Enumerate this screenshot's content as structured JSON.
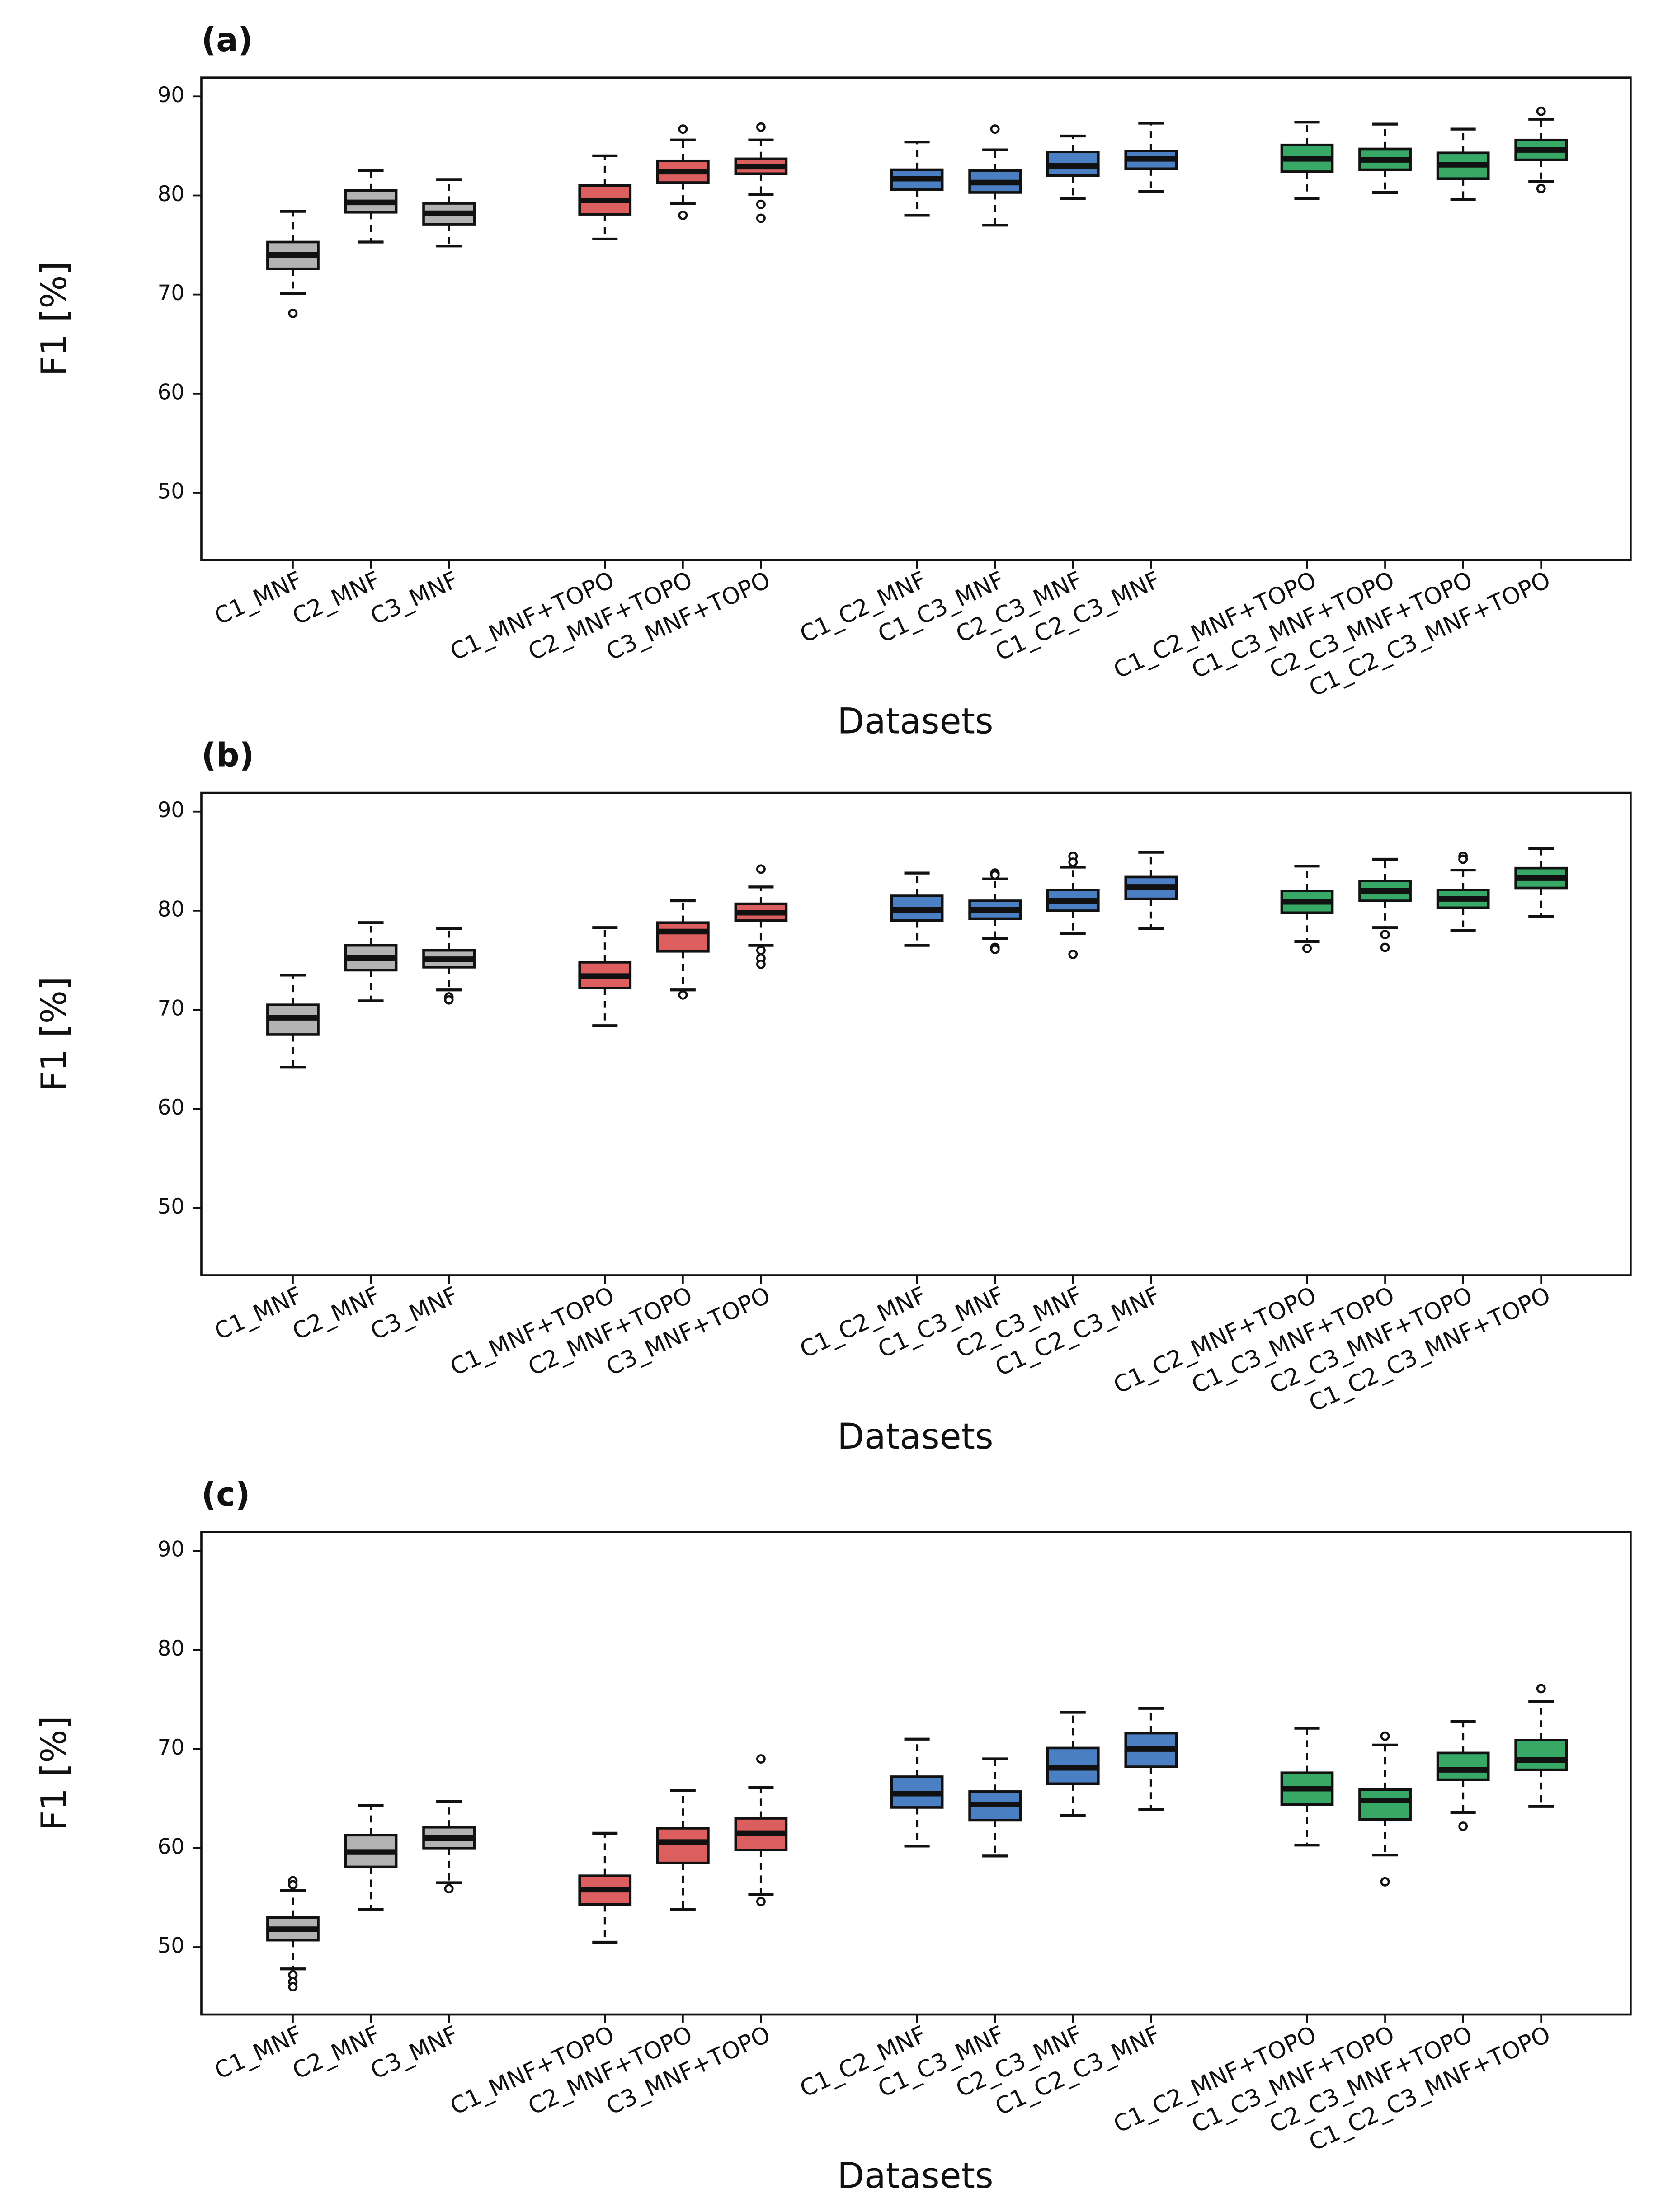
{
  "chart_data": [
    {
      "type": "box",
      "title": "(a)",
      "x_label": "Datasets",
      "y_label": "F1 [%]",
      "categories": [
        "C1_MNF",
        "C2_MNF",
        "C3_MNF",
        null,
        "C1_MNF+TOPO",
        "C2_MNF+TOPO",
        "C3_MNF+TOPO",
        null,
        "C1_C2_MNF",
        "C1_C3_MNF",
        "C2_C3_MNF",
        "C1_C2_C3_MNF",
        null,
        "C1_C2_MNF+TOPO",
        "C1_C3_MNF+TOPO",
        "C2_C3_MNF+TOPO",
        "C1_C2_C3_MNF+TOPO"
      ],
      "colors": [
        "#b3b3b3",
        "#b3b3b3",
        "#b3b3b3",
        null,
        "#dd5e5e",
        "#dd5e5e",
        "#dd5e5e",
        null,
        "#4b7fc4",
        "#4b7fc4",
        "#4b7fc4",
        "#4b7fc4",
        null,
        "#38a867",
        "#38a867",
        "#38a867",
        "#38a867"
      ],
      "boxes": [
        {
          "low": 70.1,
          "q1": 72.6,
          "median": 74.0,
          "q3": 75.3,
          "high": 78.4,
          "outliers": [
            68.1
          ]
        },
        {
          "low": 75.3,
          "q1": 78.3,
          "median": 79.3,
          "q3": 80.5,
          "high": 82.5,
          "outliers": []
        },
        {
          "low": 74.9,
          "q1": 77.1,
          "median": 78.2,
          "q3": 79.2,
          "high": 81.6,
          "outliers": []
        },
        null,
        {
          "low": 75.6,
          "q1": 78.1,
          "median": 79.5,
          "q3": 81.0,
          "high": 84.0,
          "outliers": []
        },
        {
          "low": 79.2,
          "q1": 81.3,
          "median": 82.4,
          "q3": 83.5,
          "high": 85.6,
          "outliers": [
            86.7,
            78.0
          ]
        },
        {
          "low": 80.1,
          "q1": 82.2,
          "median": 82.9,
          "q3": 83.7,
          "high": 85.6,
          "outliers": [
            86.9,
            79.1,
            77.7
          ]
        },
        null,
        {
          "low": 78.0,
          "q1": 80.6,
          "median": 81.7,
          "q3": 82.6,
          "high": 85.4,
          "outliers": []
        },
        {
          "low": 77.0,
          "q1": 80.3,
          "median": 81.3,
          "q3": 82.5,
          "high": 84.6,
          "outliers": [
            86.7
          ]
        },
        {
          "low": 79.7,
          "q1": 82.0,
          "median": 83.0,
          "q3": 84.4,
          "high": 86.0,
          "outliers": []
        },
        {
          "low": 80.4,
          "q1": 82.7,
          "median": 83.7,
          "q3": 84.5,
          "high": 87.3,
          "outliers": []
        },
        null,
        {
          "low": 79.7,
          "q1": 82.4,
          "median": 83.7,
          "q3": 85.1,
          "high": 87.4,
          "outliers": []
        },
        {
          "low": 80.3,
          "q1": 82.6,
          "median": 83.6,
          "q3": 84.7,
          "high": 87.2,
          "outliers": []
        },
        {
          "low": 79.6,
          "q1": 81.7,
          "median": 83.1,
          "q3": 84.3,
          "high": 86.7,
          "outliers": []
        },
        {
          "low": 81.4,
          "q1": 83.6,
          "median": 84.6,
          "q3": 85.6,
          "high": 87.7,
          "outliers": [
            88.5,
            80.7
          ]
        }
      ],
      "ylim": [
        43.2,
        91.9
      ],
      "yticks": [
        50,
        60,
        70,
        80,
        90
      ]
    },
    {
      "type": "box",
      "title": "(b)",
      "x_label": "Datasets",
      "y_label": "F1 [%]",
      "categories": [
        "C1_MNF",
        "C2_MNF",
        "C3_MNF",
        null,
        "C1_MNF+TOPO",
        "C2_MNF+TOPO",
        "C3_MNF+TOPO",
        null,
        "C1_C2_MNF",
        "C1_C3_MNF",
        "C2_C3_MNF",
        "C1_C2_C3_MNF",
        null,
        "C1_C2_MNF+TOPO",
        "C1_C3_MNF+TOPO",
        "C2_C3_MNF+TOPO",
        "C1_C2_C3_MNF+TOPO"
      ],
      "colors": [
        "#b3b3b3",
        "#b3b3b3",
        "#b3b3b3",
        null,
        "#dd5e5e",
        "#dd5e5e",
        "#dd5e5e",
        null,
        "#4b7fc4",
        "#4b7fc4",
        "#4b7fc4",
        "#4b7fc4",
        null,
        "#38a867",
        "#38a867",
        "#38a867",
        "#38a867"
      ],
      "boxes": [
        {
          "low": 64.2,
          "q1": 67.5,
          "median": 69.2,
          "q3": 70.5,
          "high": 73.5,
          "outliers": []
        },
        {
          "low": 70.9,
          "q1": 74.0,
          "median": 75.2,
          "q3": 76.5,
          "high": 78.8,
          "outliers": []
        },
        {
          "low": 72.0,
          "q1": 74.3,
          "median": 75.1,
          "q3": 76.0,
          "high": 78.2,
          "outliers": [
            71.3,
            71.0
          ]
        },
        null,
        {
          "low": 68.4,
          "q1": 72.2,
          "median": 73.4,
          "q3": 74.8,
          "high": 78.3,
          "outliers": []
        },
        {
          "low": 72.0,
          "q1": 75.9,
          "median": 77.9,
          "q3": 78.8,
          "high": 81.0,
          "outliers": [
            71.5
          ]
        },
        {
          "low": 76.5,
          "q1": 79.0,
          "median": 79.8,
          "q3": 80.7,
          "high": 82.4,
          "outliers": [
            84.2,
            76.0,
            75.2,
            74.6
          ]
        },
        null,
        {
          "low": 76.5,
          "q1": 79.0,
          "median": 80.1,
          "q3": 81.5,
          "high": 83.8,
          "outliers": []
        },
        {
          "low": 77.2,
          "q1": 79.2,
          "median": 80.1,
          "q3": 81.0,
          "high": 83.2,
          "outliers": [
            83.8,
            83.6,
            76.3,
            76.1
          ]
        },
        {
          "low": 77.7,
          "q1": 80.0,
          "median": 81.0,
          "q3": 82.1,
          "high": 84.4,
          "outliers": [
            85.5,
            84.9,
            75.6
          ]
        },
        {
          "low": 78.2,
          "q1": 81.2,
          "median": 82.4,
          "q3": 83.4,
          "high": 85.9,
          "outliers": []
        },
        null,
        {
          "low": 76.9,
          "q1": 79.8,
          "median": 80.9,
          "q3": 82.0,
          "high": 84.5,
          "outliers": [
            76.2
          ]
        },
        {
          "low": 78.3,
          "q1": 81.0,
          "median": 82.0,
          "q3": 83.0,
          "high": 85.2,
          "outliers": [
            77.6,
            76.3
          ]
        },
        {
          "low": 78.0,
          "q1": 80.3,
          "median": 81.2,
          "q3": 82.1,
          "high": 84.1,
          "outliers": [
            85.5,
            85.2
          ]
        },
        {
          "low": 79.4,
          "q1": 82.3,
          "median": 83.3,
          "q3": 84.3,
          "high": 86.3,
          "outliers": []
        }
      ],
      "ylim": [
        43.2,
        91.9
      ],
      "yticks": [
        50,
        60,
        70,
        80,
        90
      ]
    },
    {
      "type": "box",
      "title": "(c)",
      "x_label": "Datasets",
      "y_label": "F1 [%]",
      "categories": [
        "C1_MNF",
        "C2_MNF",
        "C3_MNF",
        null,
        "C1_MNF+TOPO",
        "C2_MNF+TOPO",
        "C3_MNF+TOPO",
        null,
        "C1_C2_MNF",
        "C1_C3_MNF",
        "C2_C3_MNF",
        "C1_C2_C3_MNF",
        null,
        "C1_C2_MNF+TOPO",
        "C1_C3_MNF+TOPO",
        "C2_C3_MNF+TOPO",
        "C1_C2_C3_MNF+TOPO"
      ],
      "colors": [
        "#b3b3b3",
        "#b3b3b3",
        "#b3b3b3",
        null,
        "#dd5e5e",
        "#dd5e5e",
        "#dd5e5e",
        null,
        "#4b7fc4",
        "#4b7fc4",
        "#4b7fc4",
        "#4b7fc4",
        null,
        "#38a867",
        "#38a867",
        "#38a867",
        "#38a867"
      ],
      "boxes": [
        {
          "low": 47.8,
          "q1": 50.7,
          "median": 51.8,
          "q3": 53.0,
          "high": 55.7,
          "outliers": [
            56.7,
            56.3,
            47.2,
            46.5,
            46.0
          ]
        },
        {
          "low": 53.8,
          "q1": 58.1,
          "median": 59.6,
          "q3": 61.3,
          "high": 64.3,
          "outliers": []
        },
        {
          "low": 56.5,
          "q1": 60.0,
          "median": 61.0,
          "q3": 62.1,
          "high": 64.7,
          "outliers": [
            55.9
          ]
        },
        null,
        {
          "low": 50.5,
          "q1": 54.3,
          "median": 55.8,
          "q3": 57.2,
          "high": 61.5,
          "outliers": []
        },
        {
          "low": 53.8,
          "q1": 58.5,
          "median": 60.6,
          "q3": 62.0,
          "high": 65.8,
          "outliers": []
        },
        {
          "low": 55.3,
          "q1": 59.8,
          "median": 61.5,
          "q3": 63.0,
          "high": 66.1,
          "outliers": [
            69.0,
            54.6
          ]
        },
        null,
        {
          "low": 60.2,
          "q1": 64.1,
          "median": 65.5,
          "q3": 67.2,
          "high": 71.0,
          "outliers": []
        },
        {
          "low": 59.2,
          "q1": 62.8,
          "median": 64.4,
          "q3": 65.7,
          "high": 69.0,
          "outliers": []
        },
        {
          "low": 63.3,
          "q1": 66.5,
          "median": 68.1,
          "q3": 70.1,
          "high": 73.7,
          "outliers": []
        },
        {
          "low": 63.9,
          "q1": 68.2,
          "median": 70.0,
          "q3": 71.6,
          "high": 74.1,
          "outliers": []
        },
        null,
        {
          "low": 60.3,
          "q1": 64.4,
          "median": 66.0,
          "q3": 67.6,
          "high": 72.1,
          "outliers": []
        },
        {
          "low": 59.3,
          "q1": 62.9,
          "median": 64.8,
          "q3": 65.9,
          "high": 70.4,
          "outliers": [
            71.3,
            56.6
          ]
        },
        {
          "low": 63.6,
          "q1": 66.9,
          "median": 67.9,
          "q3": 69.6,
          "high": 72.8,
          "outliers": [
            62.2
          ]
        },
        {
          "low": 64.2,
          "q1": 67.9,
          "median": 68.9,
          "q3": 70.9,
          "high": 74.8,
          "outliers": [
            76.1
          ]
        }
      ],
      "ylim": [
        43.2,
        91.9
      ],
      "yticks": [
        50,
        60,
        70,
        80,
        90
      ]
    }
  ]
}
